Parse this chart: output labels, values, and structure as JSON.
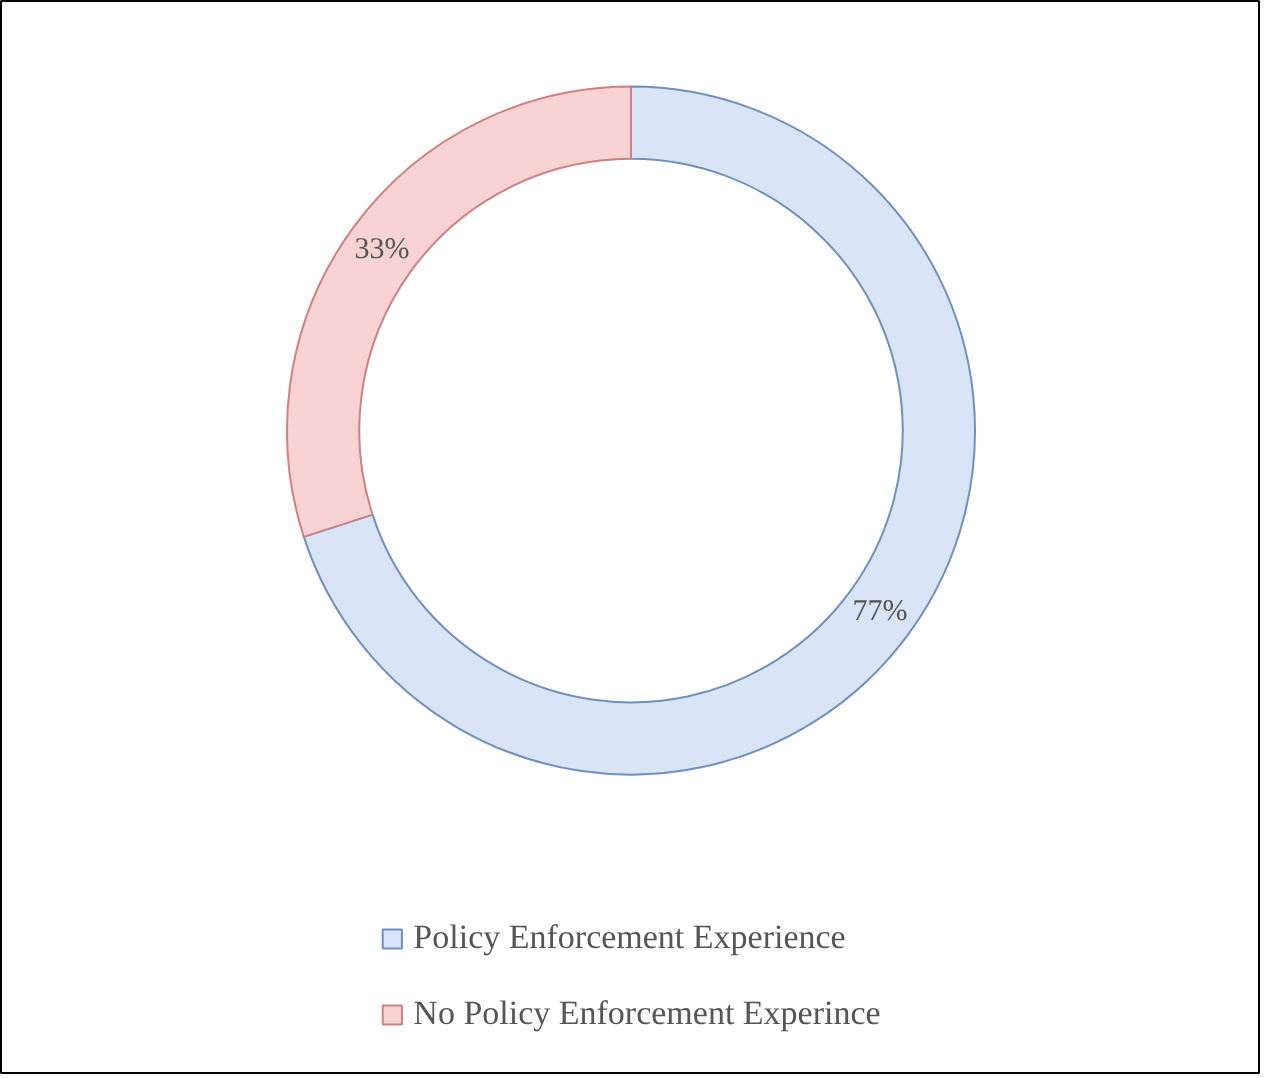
{
  "chart_data": {
    "type": "donut",
    "categories": [
      "Policy Enforcement Experience",
      "No Policy Enforcement Experince"
    ],
    "values": [
      77,
      33
    ],
    "colors": [
      "#d9e4f7",
      "#f9d3d3"
    ],
    "value_labels": [
      "77%",
      "33%"
    ],
    "legend": "bottom"
  }
}
